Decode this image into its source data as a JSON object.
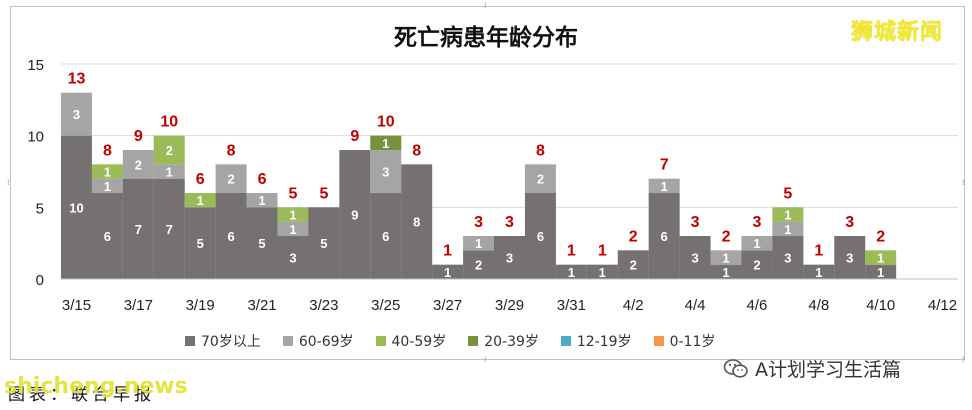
{
  "page": {
    "brand_watermark": "狮城新闻",
    "caption_source": "图表：联合早报",
    "caption_watermark": "shicheng.news",
    "caption_account": "A计划学习生活篇"
  },
  "chart_data": {
    "type": "bar",
    "stacked": true,
    "title": "死亡病患年龄分布",
    "xlabel": "",
    "ylabel": "",
    "ylim": [
      0,
      15
    ],
    "yticks": [
      0,
      5,
      10,
      15
    ],
    "grid": true,
    "legend_position": "bottom",
    "categories": [
      "3/15",
      "3/16",
      "3/17",
      "3/18",
      "3/19",
      "3/20",
      "3/21",
      "3/22",
      "3/23",
      "3/24",
      "3/25",
      "3/26",
      "3/27",
      "3/28",
      "3/29",
      "3/30",
      "3/31",
      "4/1",
      "4/2",
      "4/3",
      "4/4",
      "4/5",
      "4/6",
      "4/7",
      "4/8",
      "4/9",
      "4/10",
      "4/11",
      "4/12"
    ],
    "x_tick_labels": [
      "3/15",
      "",
      "3/17",
      "",
      "3/19",
      "",
      "3/21",
      "",
      "3/23",
      "",
      "3/25",
      "",
      "3/27",
      "",
      "3/29",
      "",
      "3/31",
      "",
      "4/2",
      "",
      "4/4",
      "",
      "4/6",
      "",
      "4/8",
      "",
      "4/10",
      "",
      "4/12"
    ],
    "series": [
      {
        "name": "70岁以上",
        "color": "#767171",
        "values": [
          10,
          6,
          7,
          7,
          5,
          6,
          5,
          3,
          5,
          9,
          6,
          8,
          1,
          2,
          3,
          6,
          1,
          1,
          2,
          6,
          3,
          1,
          2,
          3,
          1,
          3,
          1,
          0,
          0
        ]
      },
      {
        "name": "60-69岁",
        "color": "#a5a5a5",
        "values": [
          3,
          1,
          2,
          1,
          0,
          2,
          1,
          1,
          0,
          0,
          3,
          0,
          0,
          1,
          0,
          2,
          0,
          0,
          0,
          1,
          0,
          1,
          1,
          1,
          0,
          0,
          0,
          0,
          0
        ]
      },
      {
        "name": "40-59岁",
        "color": "#9bbb59",
        "values": [
          0,
          1,
          0,
          2,
          1,
          0,
          0,
          1,
          0,
          0,
          0,
          0,
          0,
          0,
          0,
          0,
          0,
          0,
          0,
          0,
          0,
          0,
          0,
          1,
          0,
          0,
          1,
          0,
          0
        ]
      },
      {
        "name": "20-39岁",
        "color": "#76923c",
        "values": [
          0,
          0,
          0,
          0,
          0,
          0,
          0,
          0,
          0,
          0,
          1,
          0,
          0,
          0,
          0,
          0,
          0,
          0,
          0,
          0,
          0,
          0,
          0,
          0,
          0,
          0,
          0,
          0,
          0
        ]
      },
      {
        "name": "12-19岁",
        "color": "#4bacc6",
        "values": [
          0,
          0,
          0,
          0,
          0,
          0,
          0,
          0,
          0,
          0,
          0,
          0,
          0,
          0,
          0,
          0,
          0,
          0,
          0,
          0,
          0,
          0,
          0,
          0,
          0,
          0,
          0,
          0,
          0
        ]
      },
      {
        "name": "0-11岁",
        "color": "#f79646",
        "values": [
          0,
          0,
          0,
          0,
          0,
          0,
          0,
          0,
          0,
          0,
          0,
          0,
          0,
          0,
          0,
          0,
          0,
          0,
          0,
          0,
          0,
          0,
          0,
          0,
          0,
          0,
          0,
          0,
          0
        ]
      }
    ],
    "totals": [
      13,
      8,
      9,
      10,
      6,
      8,
      6,
      5,
      5,
      9,
      10,
      8,
      1,
      3,
      3,
      8,
      1,
      1,
      2,
      7,
      3,
      2,
      3,
      5,
      1,
      3,
      2,
      null,
      null
    ],
    "total_label_color": "#c00000"
  }
}
